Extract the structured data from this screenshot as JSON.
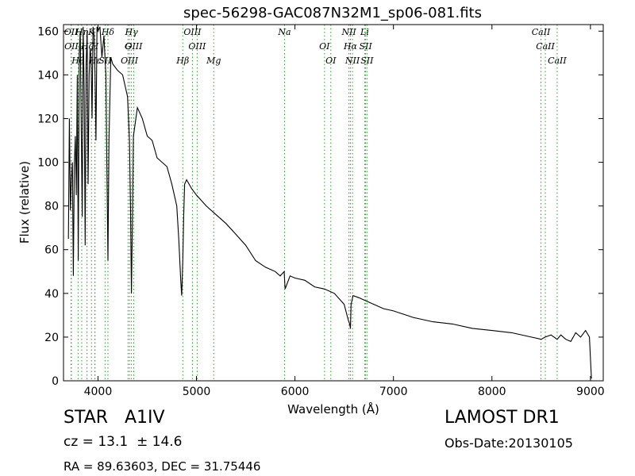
{
  "chart_data": {
    "type": "line",
    "title": "spec-56298-GAC087N32M1_sp06-081.fits",
    "xlabel": "Wavelength (Å)",
    "ylabel": "Flux (relative)",
    "xlim": [
      3650,
      9130
    ],
    "ylim": [
      0,
      163
    ],
    "xticks": [
      "4000",
      "5000",
      "6000",
      "7000",
      "8000",
      "9000"
    ],
    "yticks": [
      "0",
      "20",
      "40",
      "60",
      "80",
      "100",
      "120",
      "140",
      "160"
    ],
    "grid": false,
    "line_color": "#000000",
    "marker_color": "#2ca02c",
    "series": [
      {
        "x": [
          3700,
          3710,
          3720,
          3730,
          3740,
          3750,
          3760,
          3770,
          3780,
          3790,
          3800,
          3810,
          3820,
          3830,
          3840,
          3850,
          3860,
          3870,
          3880,
          3890,
          3900,
          3910,
          3920,
          3930,
          3940,
          3950,
          3960,
          3970,
          3980,
          3990,
          4000,
          4020,
          4040,
          4060,
          4080,
          4090,
          4101,
          4112,
          4130,
          4150,
          4200,
          4250,
          4300,
          4320,
          4330,
          4340,
          4350,
          4360,
          4400,
          4450,
          4500,
          4550,
          4600,
          4650,
          4700,
          4750,
          4800,
          4820,
          4840,
          4850,
          4861,
          4870,
          4880,
          4900,
          4950,
          5000,
          5100,
          5200,
          5300,
          5400,
          5500,
          5600,
          5700,
          5800,
          5850,
          5890,
          5900,
          5950,
          6000,
          6100,
          6200,
          6300,
          6400,
          6500,
          6540,
          6555,
          6563,
          6570,
          6590,
          6650,
          6700,
          6800,
          6900,
          7000,
          7200,
          7400,
          7600,
          7800,
          8000,
          8200,
          8400,
          8500,
          8540,
          8600,
          8662,
          8700,
          8750,
          8800,
          8850,
          8900,
          8950,
          8990,
          9000,
          9010
        ],
        "y": [
          65,
          120,
          78,
          92,
          100,
          48,
          98,
          112,
          85,
          140,
          55,
          150,
          160,
          118,
          75,
          162,
          132,
          62,
          145,
          160,
          90,
          140,
          152,
          148,
          120,
          162,
          158,
          140,
          110,
          162,
          160,
          162,
          148,
          158,
          140,
          100,
          55,
          110,
          148,
          145,
          142,
          140,
          130,
          110,
          80,
          40,
          75,
          112,
          125,
          120,
          112,
          110,
          102,
          100,
          98,
          90,
          80,
          65,
          46,
          39,
          55,
          75,
          90,
          92,
          88,
          85,
          80,
          76,
          72,
          67,
          62,
          55,
          52,
          50,
          48,
          50,
          42,
          48,
          47,
          46,
          43,
          42,
          40,
          35,
          28,
          26,
          24,
          35,
          39,
          38,
          37,
          35,
          33,
          32,
          29,
          27,
          26,
          24,
          23,
          22,
          20,
          19,
          20,
          21,
          19,
          21,
          19,
          18,
          22,
          20,
          23,
          20,
          10,
          1
        ]
      }
    ],
    "lines": [
      {
        "label": "OII",
        "x": 3727
      },
      {
        "label": "OII",
        "x": 3730
      },
      {
        "label": "Hθ",
        "x": 3798
      },
      {
        "label": "Hη",
        "x": 3835
      },
      {
        "label": "Hζ",
        "x": 3889
      },
      {
        "label": "Hε",
        "x": 3970
      },
      {
        "label": "K",
        "x": 3934
      },
      {
        "label": "H",
        "x": 3968
      },
      {
        "label": "SII",
        "x": 4072
      },
      {
        "label": "Hδ",
        "x": 4101
      },
      {
        "label": "G",
        "x": 4305
      },
      {
        "label": "OIII",
        "x": 4320
      },
      {
        "label": "Hγ",
        "x": 4340
      },
      {
        "label": "OIII",
        "x": 4363
      },
      {
        "label": "Hβ",
        "x": 4861
      },
      {
        "label": "OIII",
        "x": 4959
      },
      {
        "label": "OIII",
        "x": 5007
      },
      {
        "label": "Mg",
        "x": 5175
      },
      {
        "label": "Na",
        "x": 5894
      },
      {
        "label": "OI",
        "x": 6300
      },
      {
        "label": "OI",
        "x": 6364
      },
      {
        "label": "NII",
        "x": 6548
      },
      {
        "label": "Hα",
        "x": 6563
      },
      {
        "label": "NII",
        "x": 6584
      },
      {
        "label": "Li",
        "x": 6708
      },
      {
        "label": "SII",
        "x": 6717
      },
      {
        "label": "SII",
        "x": 6731
      },
      {
        "label": "CaII",
        "x": 8498
      },
      {
        "label": "CaII",
        "x": 8542
      },
      {
        "label": "CaII",
        "x": 8662
      }
    ]
  },
  "info": {
    "object_class": "STAR   A1IV",
    "survey": "LAMOST DR1",
    "redshift": "cz = 13.1  ± 14.6",
    "obs_date": "Obs-Date:20130105",
    "coords": "RA = 89.63603, DEC = 31.75446"
  }
}
